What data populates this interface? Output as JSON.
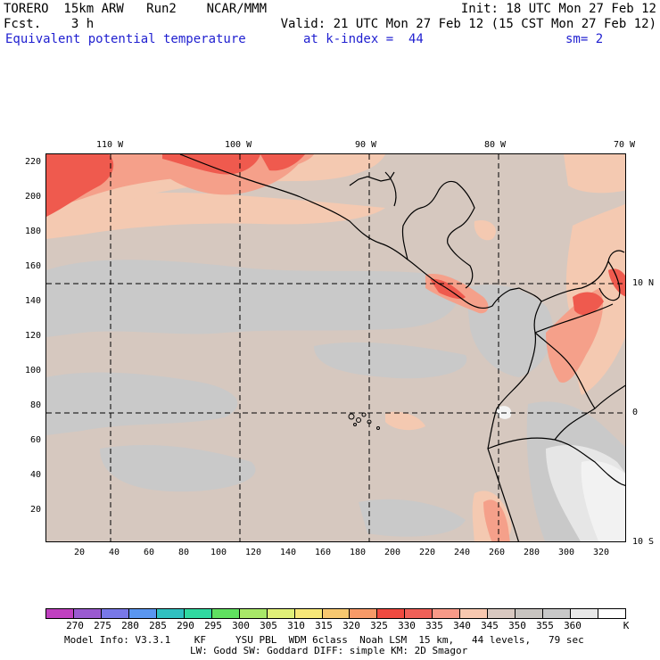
{
  "header": {
    "model": "TORERO  15km ARW   Run2    NCAR/MMM",
    "init": "Init: 18 UTC Mon 27 Feb 12",
    "fcst": "Fcst.    3 h",
    "valid": "Valid: 21 UTC Mon 27 Feb 12 (15 CST Mon 27 Feb 12)",
    "field": "Equivalent potential temperature",
    "level": "at k-index =  44",
    "smooth": "sm= 2"
  },
  "map": {
    "lon_labels": [
      "110 W",
      "100 W",
      "90 W",
      "80 W",
      "70 W"
    ],
    "lat_labels": [
      "10 N",
      "0",
      "10 S"
    ],
    "x_ticks": [
      "20",
      "40",
      "60",
      "80",
      "100",
      "120",
      "140",
      "160",
      "180",
      "200",
      "220",
      "240",
      "260",
      "280",
      "300",
      "320"
    ],
    "y_ticks": [
      "220",
      "200",
      "180",
      "160",
      "140",
      "120",
      "100",
      "80",
      "60",
      "40",
      "20"
    ]
  },
  "colorbar": {
    "colors": [
      "#c040c0",
      "#9a5ad0",
      "#7878e8",
      "#5a96f0",
      "#30c0c0",
      "#30d8a0",
      "#60e060",
      "#a8e868",
      "#e0f078",
      "#f8e878",
      "#f8c870",
      "#f89a68",
      "#f04a40",
      "#f06058",
      "#f89a88",
      "#f8c8b0",
      "#d8c8c0",
      "#c8c4c0",
      "#c8c8c8",
      "#e8e8e8",
      "#ffffff"
    ],
    "labels": [
      "270",
      "275",
      "280",
      "285",
      "290",
      "295",
      "300",
      "305",
      "310",
      "315",
      "320",
      "325",
      "330",
      "335",
      "340",
      "345",
      "350",
      "355",
      "360",
      "K"
    ]
  },
  "footer": {
    "line1": "Model Info: V3.3.1    KF     YSU PBL  WDM 6class  Noah LSM  15 km,   44 levels,   79 sec",
    "line2": "LW: Godd SW: Goddard DIFF: simple KM: 2D Smagor"
  }
}
